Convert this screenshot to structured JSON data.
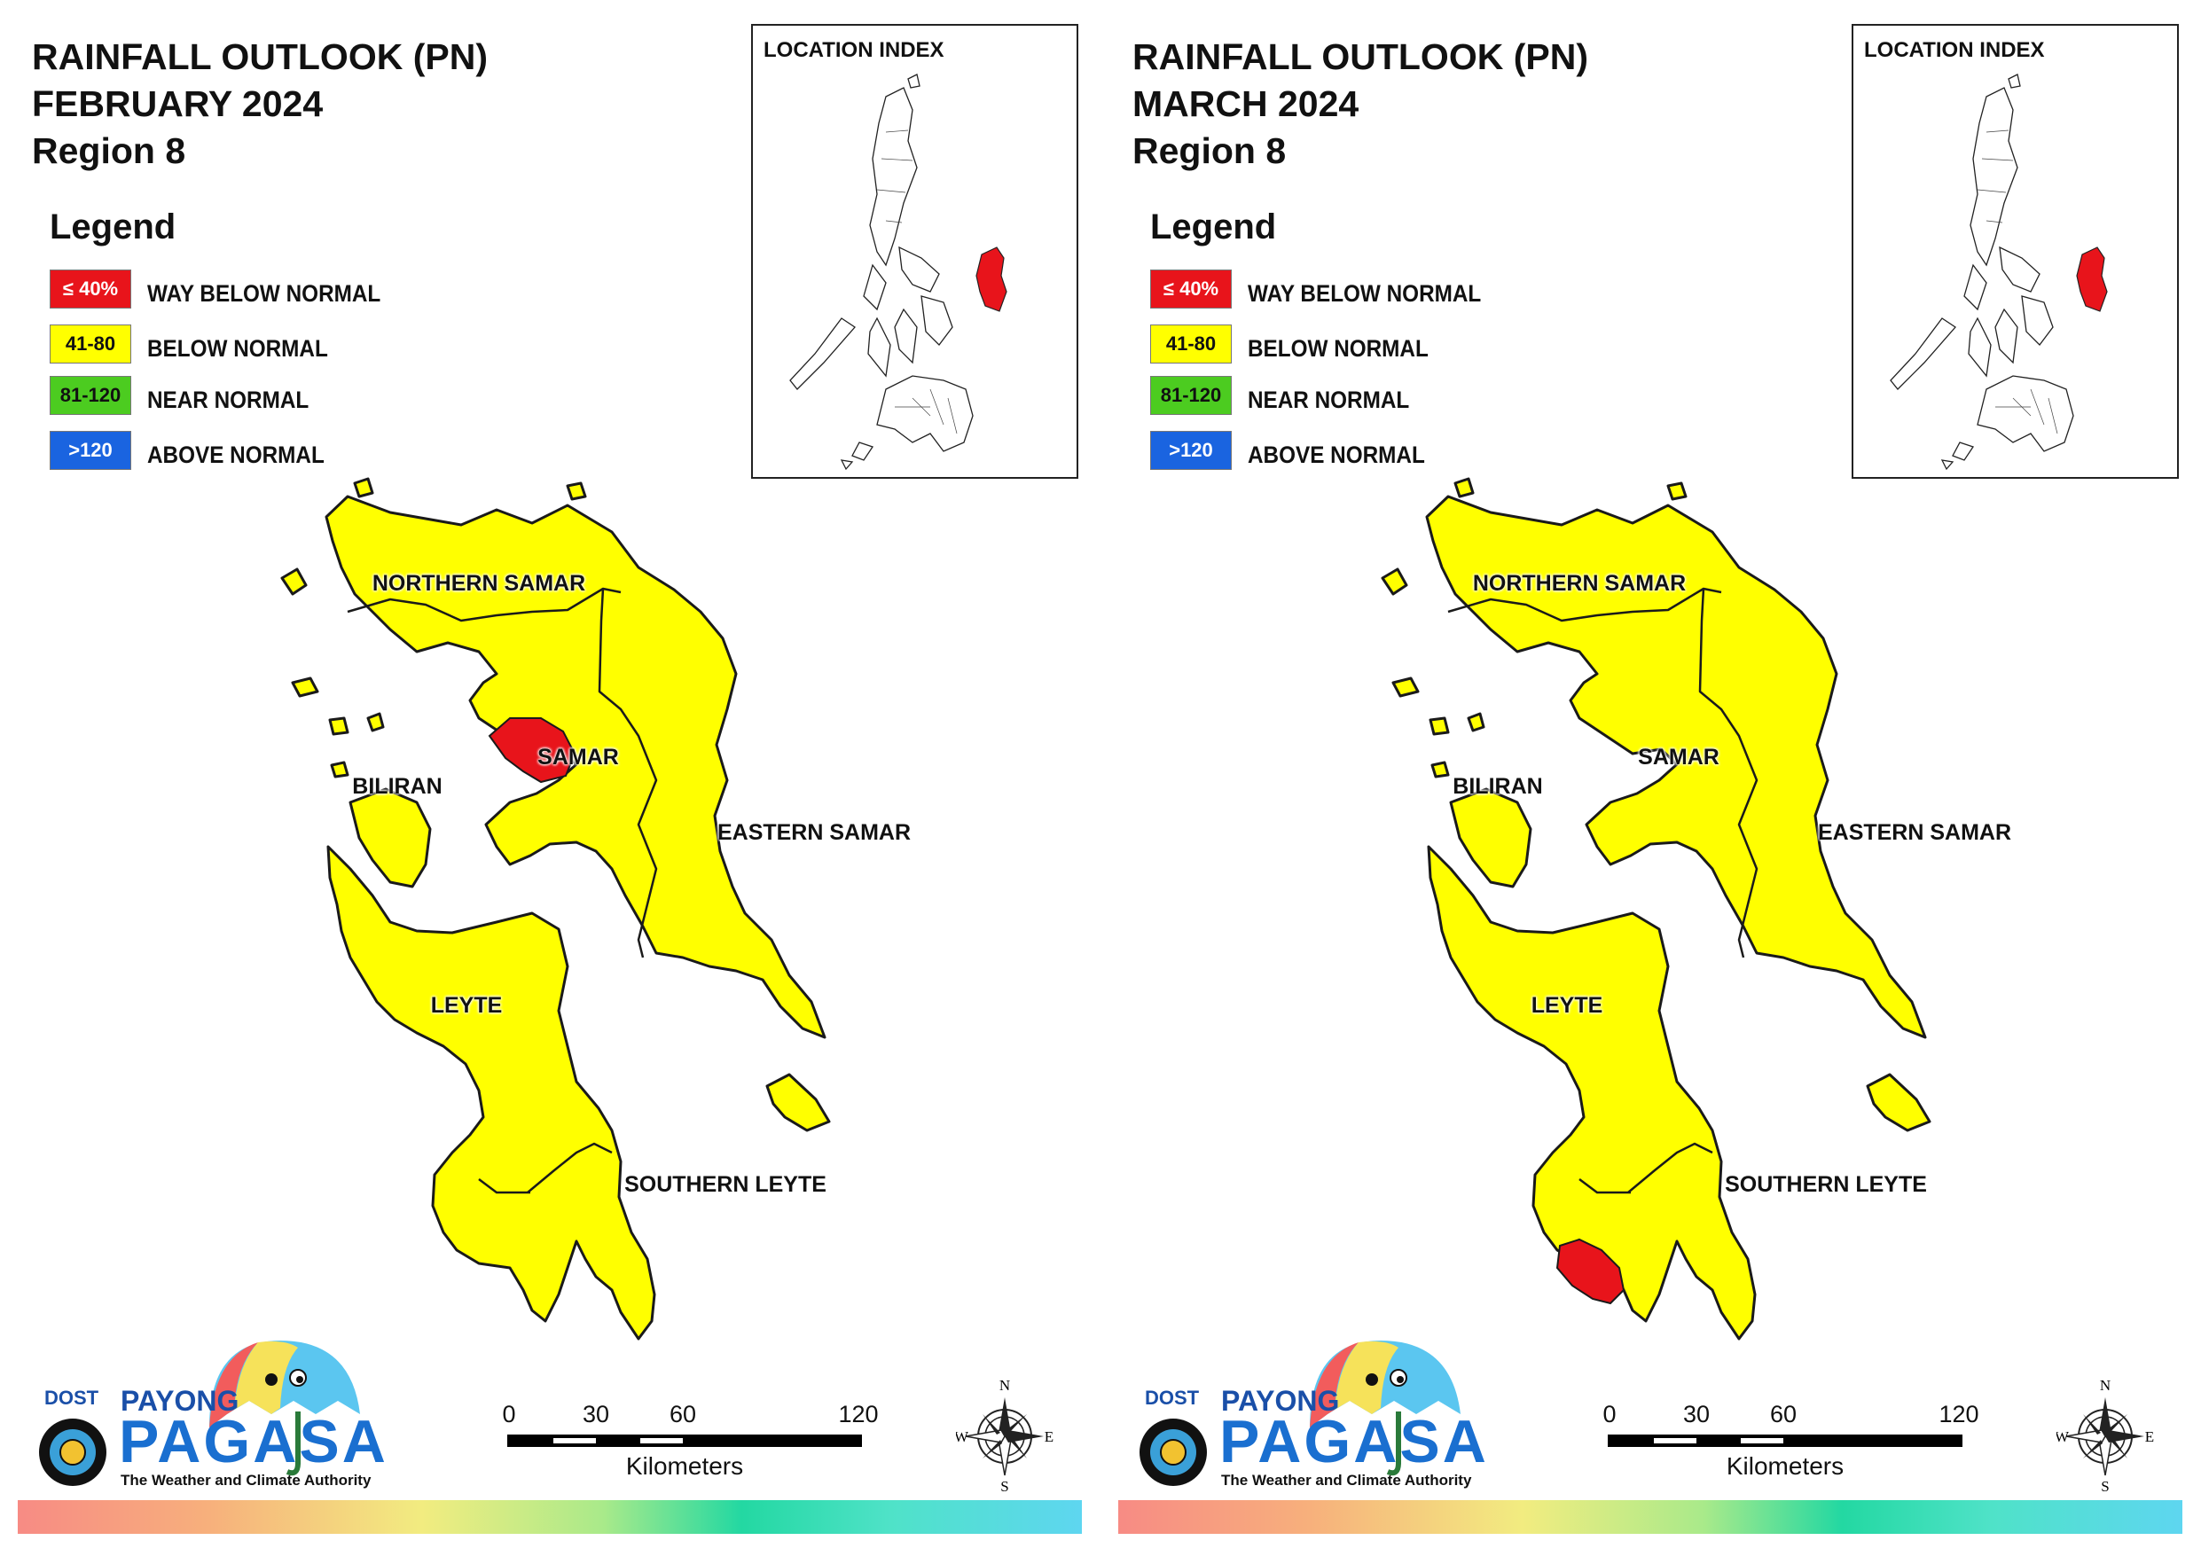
{
  "panels": [
    {
      "title_line1": "RAINFALL OUTLOOK (PN)",
      "title_line2": "FEBRUARY 2024",
      "title_line3": "Region 8",
      "dry_areas": [
        "Samar (central-west, near Catbalogan)"
      ]
    },
    {
      "title_line1": "RAINFALL OUTLOOK (PN)",
      "title_line2": "MARCH 2024",
      "title_line3": "Region 8",
      "dry_areas": [
        "Southern Leyte (south-west tip)"
      ]
    }
  ],
  "legend": {
    "heading": "Legend",
    "items": [
      {
        "swatch": "≤ 40%",
        "label": "WAY BELOW NORMAL",
        "color": "#e8141b",
        "text_color": "#ffffff"
      },
      {
        "swatch": "41-80",
        "label": "BELOW NORMAL",
        "color": "#ffff00",
        "text_color": "#111111"
      },
      {
        "swatch": "81-120",
        "label": "NEAR NORMAL",
        "color": "#4ccc20",
        "text_color": "#111111"
      },
      {
        "swatch": ">120",
        "label": "ABOVE NORMAL",
        "color": "#1a64e0",
        "text_color": "#ffffff"
      }
    ]
  },
  "inset": {
    "title": "LOCATION INDEX"
  },
  "provinces": {
    "northern_samar": "NORTHERN SAMAR",
    "samar": "SAMAR",
    "biliran": "BILIRAN",
    "eastern_samar": "EASTERN SAMAR",
    "leyte": "LEYTE",
    "southern_leyte": "SOUTHERN LEYTE"
  },
  "scale": {
    "ticks": [
      "0",
      "30",
      "60",
      "120"
    ],
    "unit": "Kilometers"
  },
  "compass": {
    "n": "N",
    "s": "S",
    "e": "E",
    "w": "W"
  },
  "logo": {
    "dost": "DOST",
    "payong": "PAYONG",
    "pagasa": "PAGASA",
    "tagline": "The Weather and Climate Authority"
  },
  "colors": {
    "way_below": "#e8141b",
    "below": "#ffff00",
    "outline": "#1a1a1a"
  }
}
